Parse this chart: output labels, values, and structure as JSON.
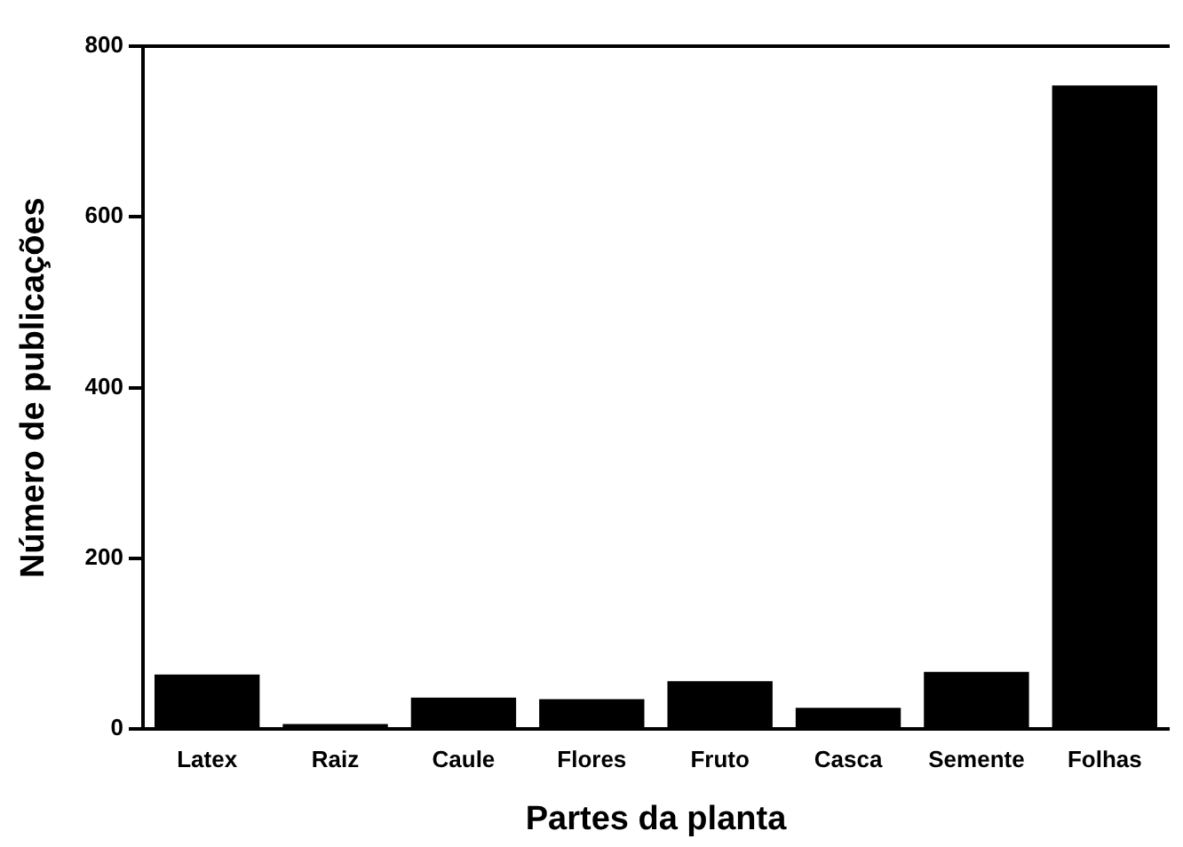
{
  "chart_data": {
    "type": "bar",
    "xlabel": "Partes da planta",
    "ylabel": "Número de publicações",
    "categories": [
      "Latex",
      "Raiz",
      "Caule",
      "Flores",
      "Fruto",
      "Casca",
      "Semente",
      "Folhas"
    ],
    "values": [
      64,
      6,
      37,
      35,
      56,
      25,
      67,
      754
    ],
    "color": "#000000",
    "ylim": [
      0,
      800
    ],
    "yticks": [
      0,
      200,
      400,
      600,
      800
    ],
    "grid": false,
    "legend": false
  }
}
